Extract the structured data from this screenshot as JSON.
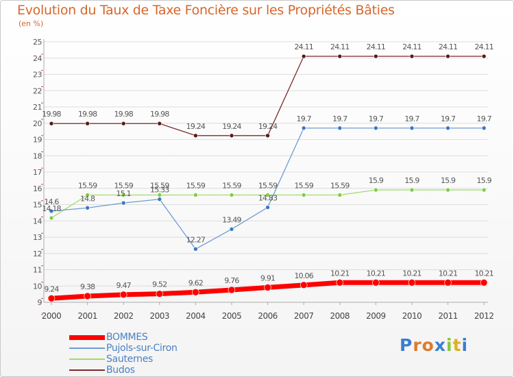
{
  "chart_data": {
    "type": "line",
    "title": "Evolution du Taux de Taxe Foncière sur les Propriétés Bâties",
    "subtitle": "(en %)",
    "categories": [
      "2000",
      "2001",
      "2002",
      "2003",
      "2004",
      "2005",
      "2006",
      "2007",
      "2008",
      "2009",
      "2010",
      "2011",
      "2012"
    ],
    "ylim": [
      9,
      25
    ],
    "yticks": [
      "9",
      "10",
      "11",
      "12",
      "13",
      "14",
      "15",
      "16",
      "17",
      "18",
      "19",
      "20",
      "21",
      "22",
      "23",
      "24",
      "25"
    ],
    "grid": "horizontal",
    "legend_position": "bottom-left",
    "series": [
      {
        "name": "BOMMES",
        "color": "#ff0000",
        "marker": "#ff0000",
        "values": [
          9.24,
          9.38,
          9.47,
          9.52,
          9.62,
          9.76,
          9.91,
          10.06,
          10.21,
          10.21,
          10.21,
          10.21,
          10.21
        ],
        "labels": [
          "9.24",
          "9.38",
          "9.47",
          "9.52",
          "9.62",
          "9.76",
          "9.91",
          "10.06",
          "10.21",
          "10.21",
          "10.21",
          "10.21",
          "10.21"
        ]
      },
      {
        "name": "Pujols-sur-Ciron",
        "color": "#6c9bd2",
        "marker": "#3a78c2",
        "values": [
          14.6,
          14.8,
          15.1,
          15.33,
          12.27,
          13.49,
          14.83,
          19.7,
          19.7,
          19.7,
          19.7,
          19.7,
          19.7
        ],
        "labels": [
          "14.6",
          "14.8",
          "15.1",
          "15.33",
          "12.27",
          "13.49",
          "14.83",
          "19.7",
          "19.7",
          "19.7",
          "19.7",
          "19.7",
          "19.7"
        ]
      },
      {
        "name": "Sauternes",
        "color": "#9fdc6a",
        "marker": "#7fcc4a",
        "values": [
          14.18,
          15.59,
          15.59,
          15.59,
          15.59,
          15.59,
          15.59,
          15.59,
          15.59,
          15.9,
          15.9,
          15.9,
          15.9
        ],
        "labels": [
          "14.18",
          "15.59",
          "15.59",
          "15.59",
          "15.59",
          "15.59",
          "15.59",
          "15.59",
          "15.59",
          "15.9",
          "15.9",
          "15.9",
          "15.9"
        ]
      },
      {
        "name": "Budos",
        "color": "#7a2a2a",
        "marker": "#5a1a1a",
        "values": [
          19.98,
          19.98,
          19.98,
          19.98,
          19.24,
          19.24,
          19.24,
          24.11,
          24.11,
          24.11,
          24.11,
          24.11,
          24.11
        ],
        "labels": [
          "19.98",
          "19.98",
          "19.98",
          "19.98",
          "19.24",
          "19.24",
          "19.24",
          "24.11",
          "24.11",
          "24.11",
          "24.11",
          "24.11",
          "24.11"
        ]
      }
    ]
  },
  "logo": {
    "text": "Proxiti"
  }
}
